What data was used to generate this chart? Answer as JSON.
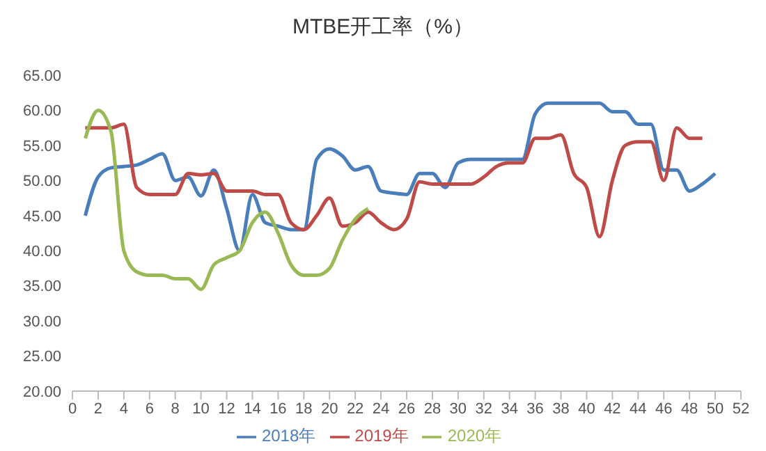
{
  "chart_data": {
    "type": "line",
    "title": "MTBE开工率（%）",
    "x": [
      1,
      2,
      3,
      4,
      5,
      6,
      7,
      8,
      9,
      10,
      11,
      12,
      13,
      14,
      15,
      16,
      17,
      18,
      19,
      20,
      21,
      22,
      23,
      24,
      25,
      26,
      27,
      28,
      29,
      30,
      31,
      32,
      33,
      34,
      35,
      36,
      37,
      38,
      39,
      40,
      41,
      42,
      43,
      44,
      45,
      46,
      47,
      48,
      49,
      50
    ],
    "series": [
      {
        "name": "2018年",
        "color": "#4a7ebb",
        "values": [
          45,
          50.5,
          51.8,
          52,
          52.2,
          53,
          53.8,
          50,
          50.5,
          47.8,
          51.5,
          46,
          40,
          48,
          44,
          43.5,
          43,
          43,
          53,
          54.5,
          53.5,
          51.5,
          52,
          48.5,
          48.2,
          48,
          51,
          51,
          49,
          52.5,
          53,
          53,
          53,
          53,
          53,
          59.5,
          61,
          61,
          61,
          61,
          61,
          59.8,
          59.8,
          58,
          58,
          51.5,
          51.5,
          48.5,
          49.5,
          51
        ]
      },
      {
        "name": "2019年",
        "color": "#be4b48",
        "values": [
          57.5,
          57.5,
          57.5,
          58,
          49,
          48,
          48,
          48,
          51,
          50.8,
          51,
          48.5,
          48.5,
          48.5,
          48,
          48,
          44,
          43,
          45,
          47.5,
          43.5,
          44,
          45.5,
          44,
          43,
          44.5,
          49.8,
          49.5,
          49.5,
          49.5,
          49.5,
          50.5,
          52,
          52.5,
          52.5,
          56,
          56,
          56.5,
          51,
          49,
          42,
          50,
          55,
          55.5,
          55.5,
          50,
          57.5,
          56,
          56,
          null
        ]
      },
      {
        "name": "2020年",
        "color": "#98b954",
        "values": [
          56,
          60,
          57,
          40,
          37,
          36.5,
          36.5,
          36,
          36,
          34.5,
          38,
          39,
          40,
          44,
          45.5,
          42.5,
          38,
          36.5,
          36.5,
          37.5,
          41.5,
          44.5,
          46,
          null,
          null,
          null,
          null,
          null,
          null,
          null,
          null,
          null,
          null,
          null,
          null,
          null,
          null,
          null,
          null,
          null,
          null,
          null,
          null,
          null,
          null,
          null,
          null,
          null,
          null,
          null
        ]
      }
    ],
    "xlim": [
      0,
      52
    ],
    "xticks": [
      0,
      2,
      4,
      6,
      8,
      10,
      12,
      14,
      16,
      18,
      20,
      22,
      24,
      26,
      28,
      30,
      32,
      34,
      36,
      38,
      40,
      42,
      44,
      46,
      48,
      50,
      52
    ],
    "ylim": [
      20,
      65
    ],
    "yticks": [
      {
        "value": 20,
        "label": "20.00"
      },
      {
        "value": 25,
        "label": "25.00"
      },
      {
        "value": 30,
        "label": "30.00"
      },
      {
        "value": 35,
        "label": "35.00"
      },
      {
        "value": 40,
        "label": "40.00"
      },
      {
        "value": 45,
        "label": "45.00"
      },
      {
        "value": 50,
        "label": "50.00"
      },
      {
        "value": 55,
        "label": "55.00"
      },
      {
        "value": 60,
        "label": "60.00"
      },
      {
        "value": 65,
        "label": "65.00"
      }
    ],
    "grid": false,
    "legend": "bottom",
    "marker": "none",
    "line_style": "solid"
  }
}
